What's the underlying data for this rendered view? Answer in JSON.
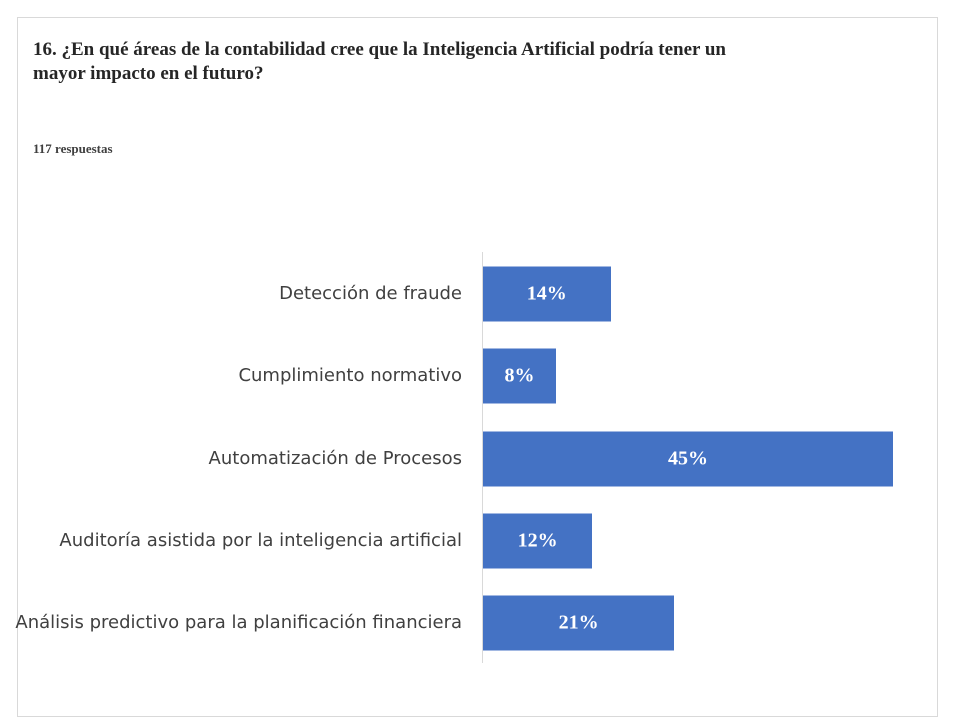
{
  "chart_data": {
    "type": "bar",
    "orientation": "horizontal",
    "title": "16. ¿En qué áreas de la contabilidad cree que la Inteligencia Artificial podría tener un mayor impacto en el futuro?",
    "subtitle": "117 respuestas",
    "categories": [
      "Detección de fraude",
      "Cumplimiento normativo",
      "Automatización de Procesos",
      "Auditoría asistida por la inteligencia artificial",
      "Análisis predictivo para la planificación financiera"
    ],
    "values": [
      14,
      8,
      45,
      12,
      21
    ],
    "value_labels": [
      "14%",
      "8%",
      "45%",
      "12%",
      "21%"
    ],
    "color": "#4472c4"
  }
}
